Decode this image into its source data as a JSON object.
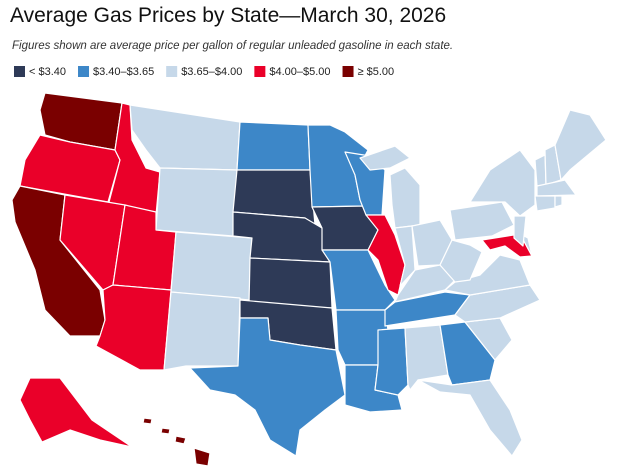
{
  "title": "Average Gas Prices by State—March 30, 2026",
  "subtitle": "Figures shown are average price per gallon of regular unleaded gasoline in each state.",
  "legend": [
    {
      "label": "< $3.40",
      "color": "#2e3a57"
    },
    {
      "label": "$3.40–$3.65",
      "color": "#3d87c8"
    },
    {
      "label": "$3.65–$4.00",
      "color": "#c6d8e9"
    },
    {
      "label": "$4.00–$5.00",
      "color": "#ea0029"
    },
    {
      "label": "≥ $5.00",
      "color": "#7a0000"
    }
  ]
}
